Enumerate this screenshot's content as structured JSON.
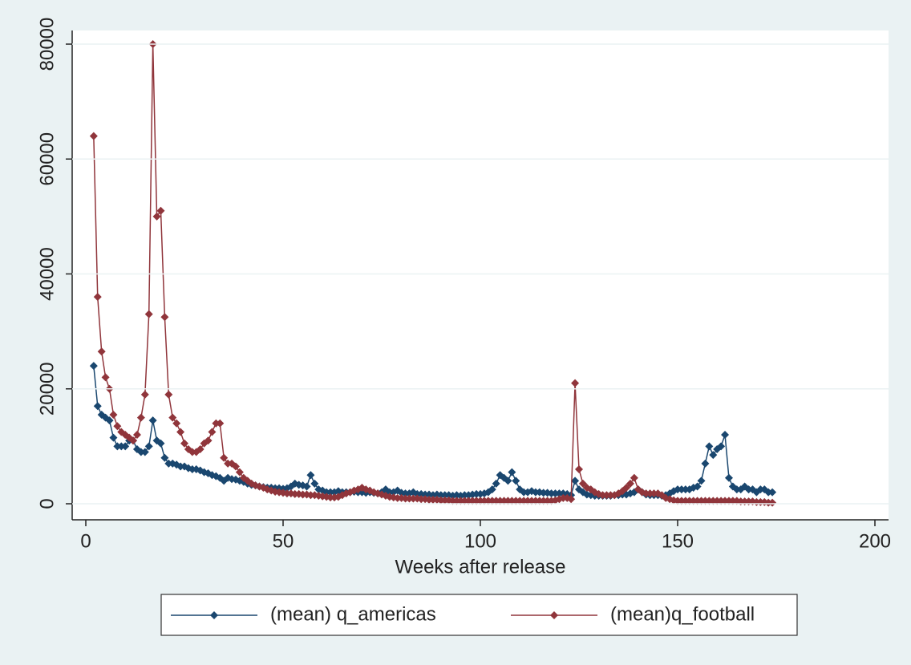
{
  "chart_data": {
    "type": "line",
    "x_label": "Weeks after release",
    "xlim": [
      0,
      200
    ],
    "xticks": [
      0,
      50,
      100,
      150,
      200
    ],
    "ylim": [
      0,
      80000
    ],
    "yticks": [
      0,
      20000,
      40000,
      60000,
      80000
    ],
    "grid": true,
    "legend": "bottom",
    "x": [
      2,
      3,
      4,
      5,
      6,
      7,
      8,
      9,
      10,
      11,
      12,
      13,
      14,
      15,
      16,
      17,
      18,
      19,
      20,
      21,
      22,
      23,
      24,
      25,
      26,
      27,
      28,
      29,
      30,
      31,
      32,
      33,
      34,
      35,
      36,
      37,
      38,
      39,
      40,
      41,
      42,
      43,
      44,
      45,
      46,
      47,
      48,
      49,
      50,
      51,
      52,
      53,
      54,
      55,
      56,
      57,
      58,
      59,
      60,
      61,
      62,
      63,
      64,
      65,
      66,
      67,
      68,
      69,
      70,
      71,
      72,
      73,
      74,
      75,
      76,
      77,
      78,
      79,
      80,
      81,
      82,
      83,
      84,
      85,
      86,
      87,
      88,
      89,
      90,
      91,
      92,
      93,
      94,
      95,
      96,
      97,
      98,
      99,
      100,
      101,
      102,
      103,
      104,
      105,
      106,
      107,
      108,
      109,
      110,
      111,
      112,
      113,
      114,
      115,
      116,
      117,
      118,
      119,
      120,
      121,
      122,
      123,
      124,
      125,
      126,
      127,
      128,
      129,
      130,
      131,
      132,
      133,
      134,
      135,
      136,
      137,
      138,
      139,
      140,
      141,
      142,
      143,
      144,
      145,
      146,
      147,
      148,
      149,
      150,
      151,
      152,
      153,
      154,
      155,
      156,
      157,
      158,
      159,
      160,
      161,
      162,
      163,
      164,
      165,
      166,
      167,
      168,
      169,
      170,
      171,
      172,
      173,
      174
    ],
    "series": [
      {
        "name": "(mean) q_americas",
        "color": "#1a476f",
        "values": [
          24000,
          17000,
          15500,
          15000,
          14500,
          11500,
          10000,
          10000,
          10000,
          11000,
          11000,
          9500,
          9000,
          9000,
          10000,
          14500,
          11000,
          10500,
          8000,
          7000,
          7000,
          6800,
          6500,
          6500,
          6200,
          6000,
          6000,
          5800,
          5500,
          5300,
          5000,
          4800,
          4500,
          4000,
          4500,
          4300,
          4200,
          4000,
          3800,
          3500,
          3300,
          3200,
          3000,
          2900,
          2800,
          2800,
          2700,
          2700,
          2600,
          2700,
          3000,
          3500,
          3300,
          3200,
          3000,
          5000,
          3500,
          2500,
          2300,
          2000,
          2000,
          2000,
          2200,
          2000,
          2000,
          2000,
          2100,
          2000,
          2000,
          1900,
          2000,
          1900,
          1800,
          2000,
          2500,
          2000,
          2000,
          2300,
          1900,
          1800,
          1800,
          2000,
          1700,
          1700,
          1600,
          1600,
          1500,
          1600,
          1500,
          1500,
          1500,
          1400,
          1500,
          1400,
          1500,
          1500,
          1600,
          1700,
          1700,
          1800,
          2000,
          2500,
          3500,
          5000,
          4500,
          4000,
          5500,
          4000,
          2500,
          2000,
          2000,
          2200,
          2000,
          2000,
          1900,
          1900,
          1800,
          1800,
          1800,
          1800,
          1700,
          1500,
          4000,
          2500,
          2000,
          1600,
          1500,
          1400,
          1400,
          1400,
          1400,
          1400,
          1500,
          1500,
          1600,
          1600,
          1800,
          2000,
          2500,
          2000,
          1600,
          1500,
          1500,
          1500,
          1400,
          1500,
          1800,
          2200,
          2500,
          2500,
          2500,
          2500,
          2800,
          3000,
          4000,
          7000,
          10000,
          8500,
          9500,
          10000,
          12000,
          4500,
          3000,
          2500,
          2500,
          3000,
          2500,
          2500,
          2000,
          2500,
          2500,
          2000,
          2000
        ]
      },
      {
        "name": "(mean)q_football",
        "color": "#90353b",
        "values": [
          64000,
          36000,
          26500,
          22000,
          20000,
          15500,
          13500,
          12500,
          12000,
          11500,
          11000,
          12000,
          15000,
          19000,
          33000,
          80000,
          50000,
          51000,
          32500,
          19000,
          15000,
          14000,
          12500,
          10500,
          9500,
          9000,
          9000,
          9500,
          10500,
          11000,
          12500,
          14000,
          14000,
          8000,
          7000,
          7000,
          6500,
          5500,
          4500,
          4000,
          3500,
          3200,
          3000,
          2800,
          2500,
          2300,
          2100,
          2000,
          1900,
          1800,
          1800,
          1700,
          1700,
          1600,
          1600,
          1500,
          1500,
          1400,
          1300,
          1200,
          1100,
          1100,
          1200,
          1500,
          1800,
          2000,
          2300,
          2500,
          2800,
          2500,
          2300,
          2000,
          1800,
          1600,
          1400,
          1200,
          1100,
          1000,
          1000,
          900,
          900,
          900,
          900,
          800,
          800,
          700,
          700,
          700,
          600,
          600,
          600,
          500,
          500,
          500,
          500,
          500,
          500,
          500,
          500,
          500,
          500,
          500,
          500,
          500,
          500,
          500,
          500,
          500,
          500,
          500,
          500,
          500,
          500,
          500,
          500,
          500,
          500,
          600,
          800,
          1000,
          1000,
          800,
          21000,
          6000,
          3500,
          2800,
          2500,
          2000,
          1700,
          1500,
          1500,
          1500,
          1500,
          1800,
          2200,
          2800,
          3500,
          4500,
          2500,
          2000,
          1800,
          1800,
          1800,
          1800,
          1500,
          1000,
          800,
          600,
          500,
          500,
          500,
          500,
          500,
          500,
          500,
          500,
          500,
          500,
          500,
          500,
          500,
          500,
          500,
          500,
          400,
          400,
          400,
          400,
          300,
          300,
          300,
          200,
          200
        ]
      }
    ]
  }
}
